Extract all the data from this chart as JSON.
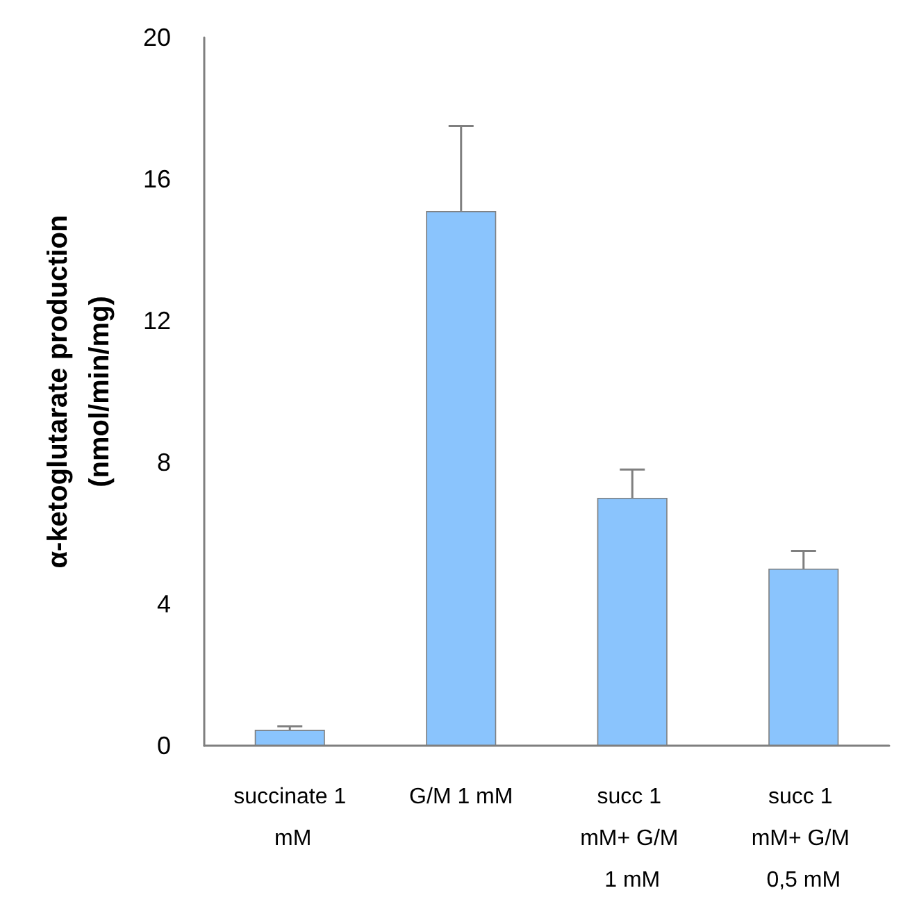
{
  "chart_data": {
    "type": "bar",
    "ylabel": "α-ketoglutarate production\n(nmol/min/mg)",
    "categories": [
      "succinate 1 mM",
      "G/M 1 mM",
      "succ 1 mM+ G/M 1 mM",
      "succ 1 mM+ G/M 0,5 mM"
    ],
    "values": [
      0.45,
      15.1,
      7.0,
      5.0
    ],
    "errors": [
      [
        0.45,
        0.55
      ],
      [
        15.1,
        17.5
      ],
      [
        7.0,
        7.8
      ],
      [
        5.0,
        5.5
      ]
    ],
    "color": "#8ac4fd",
    "ylim": [
      0,
      20
    ],
    "yticks": [
      0,
      4,
      8,
      12,
      16,
      20
    ],
    "grid": false,
    "legend": false
  }
}
